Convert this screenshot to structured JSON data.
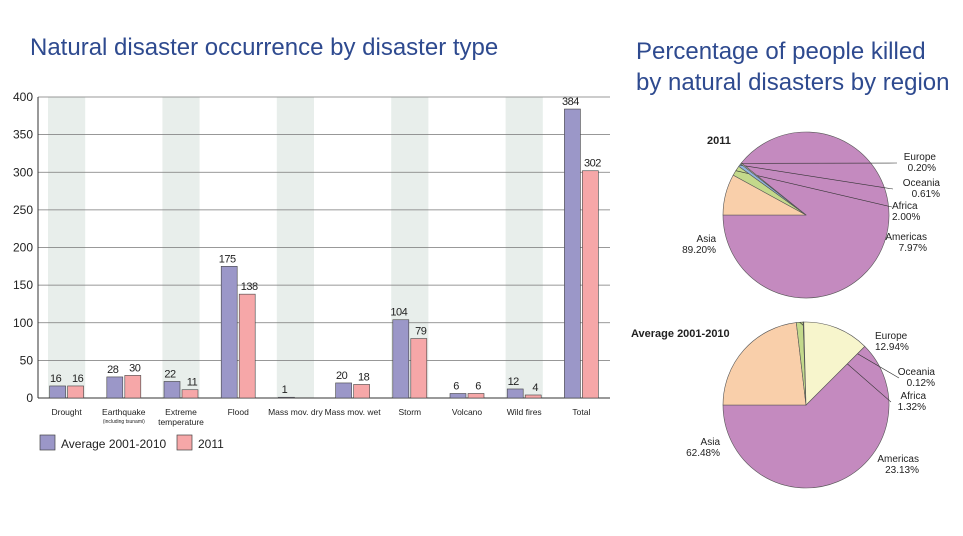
{
  "chart_data": [
    {
      "type": "bar",
      "title": "Natural disaster occurrence by disaster type",
      "categories": [
        "Drought",
        "Earthquake",
        "Extreme temperature",
        "Flood",
        "Mass mov. dry",
        "Mass mov. wet",
        "Storm",
        "Volcano",
        "Wild fires",
        "Total"
      ],
      "category_notes": {
        "Earthquake": "(including tsunami)"
      },
      "series": [
        {
          "name": "Average 2001-2010",
          "color": "#9b97c8",
          "values": [
            16,
            28,
            22,
            175,
            1,
            20,
            104,
            6,
            12,
            384
          ]
        },
        {
          "name": "2011",
          "color": "#f6a7a8",
          "values": [
            16,
            30,
            11,
            138,
            null,
            18,
            79,
            6,
            4,
            302
          ]
        }
      ],
      "ylim": [
        0,
        400
      ],
      "yticks": [
        0,
        50,
        100,
        150,
        200,
        250,
        300,
        350,
        400
      ],
      "grid": true,
      "legend": "bottom-left"
    },
    {
      "type": "pie",
      "title": "Percentage of people killed by natural disasters by region",
      "title_lines": [
        "Percentage of people killed",
        "by natural disasters by region"
      ],
      "subtitle": "2011",
      "slices": [
        {
          "label": "Asia",
          "value": 89.2,
          "text": "89.20%",
          "color": "#c48abf"
        },
        {
          "label": "Americas",
          "value": 7.97,
          "text": "7.97%",
          "color": "#f9cfaa"
        },
        {
          "label": "Africa",
          "value": 2.0,
          "text": "2.00%",
          "color": "#c3d98b"
        },
        {
          "label": "Oceania",
          "value": 0.61,
          "text": "0.61%",
          "color": "#8fb3dd"
        },
        {
          "label": "Europe",
          "value": 0.2,
          "text": "0.20%",
          "color": "#f7f5cc"
        }
      ]
    },
    {
      "type": "pie",
      "subtitle": "Average 2001-2010",
      "slices": [
        {
          "label": "Asia",
          "value": 62.48,
          "text": "62.48%",
          "color": "#c48abf"
        },
        {
          "label": "Americas",
          "value": 23.13,
          "text": "23.13%",
          "color": "#f9cfaa"
        },
        {
          "label": "Africa",
          "value": 1.32,
          "text": "1.32%",
          "color": "#c3d98b"
        },
        {
          "label": "Oceania",
          "value": 0.12,
          "text": "0.12%",
          "color": "#8fb3dd"
        },
        {
          "label": "Europe",
          "value": 12.94,
          "text": "12.94%",
          "color": "#f7f5cc"
        }
      ]
    }
  ]
}
